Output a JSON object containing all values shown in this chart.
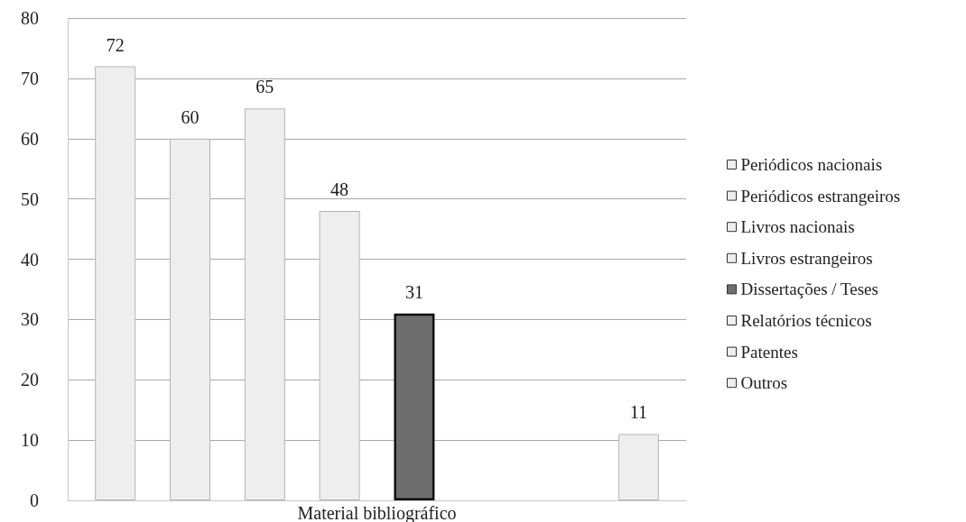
{
  "chart_data": {
    "type": "bar",
    "categories": [
      "Material bibliográfico"
    ],
    "series": [
      {
        "name": "Periódicos nacionais",
        "color": "#eeeeee",
        "values": [
          72
        ]
      },
      {
        "name": "Periódicos estrangeiros",
        "color": "#eeeeee",
        "values": [
          60
        ]
      },
      {
        "name": "Livros nacionais",
        "color": "#eeeeee",
        "values": [
          65
        ]
      },
      {
        "name": "Livros estrangeiros",
        "color": "#eeeeee",
        "values": [
          48
        ]
      },
      {
        "name": "Dissertações / Teses",
        "color": "#6e6e6e",
        "values": [
          31
        ]
      },
      {
        "name": "Relatórios técnicos",
        "color": "#eeeeee",
        "values": [
          null
        ]
      },
      {
        "name": "Patentes",
        "color": "#eeeeee",
        "values": [
          null
        ]
      },
      {
        "name": "Outros",
        "color": "#eeeeee",
        "values": [
          11
        ]
      }
    ],
    "ylim": [
      0,
      80
    ],
    "yticks": [
      0,
      10,
      20,
      30,
      40,
      50,
      60,
      70,
      80
    ],
    "grid": "y",
    "legend": "right",
    "data_labels": true
  }
}
